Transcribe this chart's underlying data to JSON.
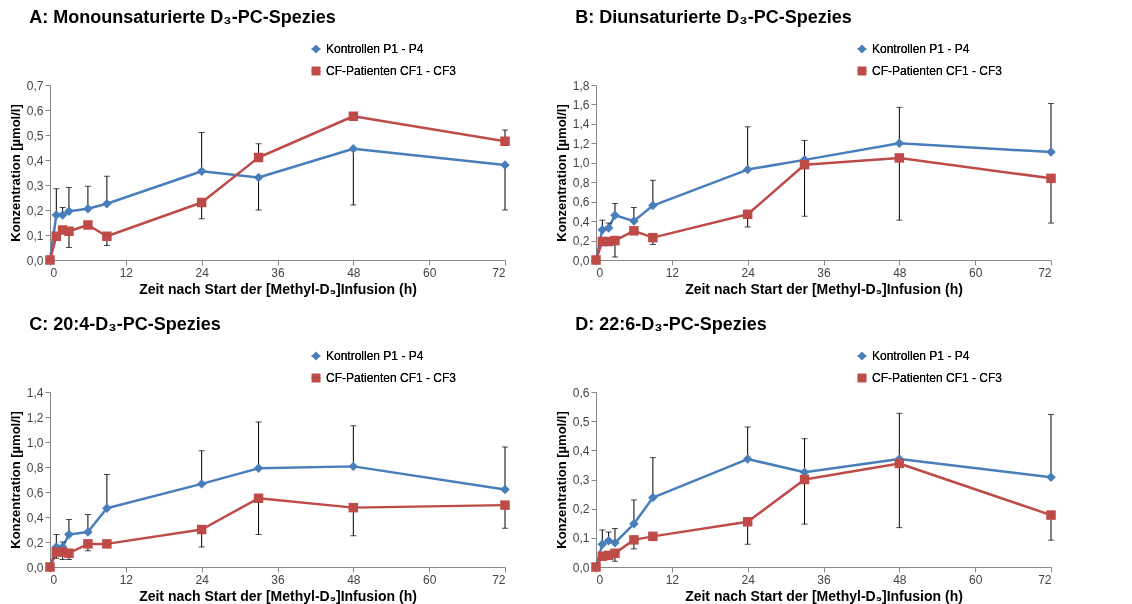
{
  "chart_data": [
    {
      "type": "line",
      "title": "A: Monounsaturierte D₃-PC-Spezies",
      "xlabel": "Zeit nach Start der [Methyl-D₉]Infusion (h)",
      "ylabel": "Konzentration [µmol/l]",
      "x": [
        0,
        1,
        2,
        3,
        6,
        9,
        24,
        33,
        48,
        72
      ],
      "xlim": [
        0,
        72
      ],
      "xticks": [
        0,
        12,
        24,
        36,
        48,
        60,
        72
      ],
      "ylim": [
        0,
        0.7
      ],
      "yticks": [
        {
          "value": 0,
          "label": "0,0"
        },
        {
          "value": 0.1,
          "label": "0,1"
        },
        {
          "value": 0.2,
          "label": "0,2"
        },
        {
          "value": 0.3,
          "label": "0,3"
        },
        {
          "value": 0.4,
          "label": "0,4"
        },
        {
          "value": 0.5,
          "label": "0,5"
        },
        {
          "value": 0.6,
          "label": "0,6"
        },
        {
          "value": 0.7,
          "label": "0,7"
        }
      ],
      "legend": "top right",
      "grid": false,
      "series": [
        {
          "name": "Kontrollen P1 - P4",
          "color": "#4a7ebb",
          "marker": "diamond",
          "values": [
            0,
            0.18,
            0.18,
            0.195,
            0.205,
            0.225,
            0.355,
            0.33,
            0.445,
            0.38
          ],
          "errors": [
            null,
            [
              0.18,
              0.285
            ],
            [
              0.18,
              0.21
            ],
            [
              0.195,
              0.29
            ],
            [
              0.205,
              0.295
            ],
            [
              0.225,
              0.335
            ],
            [
              0.355,
              0.51
            ],
            [
              0.2,
              0.33
            ],
            [
              0.22,
              0.445
            ],
            [
              0.2,
              0.38
            ]
          ]
        },
        {
          "name": "CF-Patienten CF1 - CF3",
          "color": "#be4b48",
          "marker": "square",
          "values": [
            0,
            0.095,
            0.12,
            0.115,
            0.14,
            0.095,
            0.23,
            0.41,
            0.575,
            0.475
          ],
          "errors": [
            null,
            null,
            null,
            [
              0.05,
              0.115
            ],
            null,
            [
              0.058,
              0.095
            ],
            [
              0.165,
              0.23
            ],
            [
              0.41,
              0.465
            ],
            null,
            [
              0.475,
              0.52
            ]
          ]
        }
      ]
    },
    {
      "type": "line",
      "title": "B: Diunsaturierte D₃-PC-Spezies",
      "xlabel": "Zeit nach Start der [Methyl-D₉]Infusion (h)",
      "ylabel": "Konzentration [µmol/l]",
      "x": [
        0,
        1,
        2,
        3,
        6,
        9,
        24,
        33,
        48,
        72
      ],
      "xlim": [
        0,
        72
      ],
      "xticks": [
        0,
        12,
        24,
        36,
        48,
        60,
        72
      ],
      "ylim": [
        0,
        1.8
      ],
      "yticks": [
        {
          "value": 0,
          "label": "0,0"
        },
        {
          "value": 0.2,
          "label": "0,2"
        },
        {
          "value": 0.4,
          "label": "0,4"
        },
        {
          "value": 0.6,
          "label": "0,6"
        },
        {
          "value": 0.8,
          "label": "0,8"
        },
        {
          "value": 1.0,
          "label": "1,0"
        },
        {
          "value": 1.2,
          "label": "1,2"
        },
        {
          "value": 1.4,
          "label": "1,4"
        },
        {
          "value": 1.6,
          "label": "1,6"
        },
        {
          "value": 1.8,
          "label": "1,8"
        }
      ],
      "legend": "top right",
      "grid": false,
      "series": [
        {
          "name": "Kontrollen P1 - P4",
          "color": "#4a7ebb",
          "marker": "diamond",
          "values": [
            0,
            0.31,
            0.33,
            0.46,
            0.4,
            0.56,
            0.93,
            1.03,
            1.2,
            1.11
          ],
          "errors": [
            null,
            [
              0.31,
              0.41
            ],
            [
              0.33,
              0.38
            ],
            [
              0.46,
              0.58
            ],
            [
              0.4,
              0.54
            ],
            [
              0.56,
              0.82
            ],
            [
              0.93,
              1.37
            ],
            [
              1.03,
              1.23
            ],
            [
              1.2,
              1.57
            ],
            [
              1.11,
              1.61
            ]
          ]
        },
        {
          "name": "CF-Patienten CF1 - CF3",
          "color": "#be4b48",
          "marker": "square",
          "values": [
            0,
            0.19,
            0.19,
            0.2,
            0.3,
            0.23,
            0.47,
            0.98,
            1.05,
            0.84
          ],
          "errors": [
            null,
            null,
            null,
            [
              0.03,
              0.2
            ],
            null,
            [
              0.16,
              0.23
            ],
            [
              0.34,
              0.47
            ],
            [
              0.45,
              0.98
            ],
            [
              0.41,
              1.05
            ],
            [
              0.38,
              0.84
            ]
          ]
        }
      ]
    },
    {
      "type": "line",
      "title": "C: 20:4-D₃-PC-Spezies",
      "xlabel": "Zeit nach Start der [Methyl-D₉]Infusion (h)",
      "ylabel": "Konzentration [µmol/l]",
      "x": [
        0,
        1,
        2,
        3,
        6,
        9,
        24,
        33,
        48,
        72
      ],
      "xlim": [
        0,
        72
      ],
      "xticks": [
        0,
        12,
        24,
        36,
        48,
        60,
        72
      ],
      "ylim": [
        0,
        1.4
      ],
      "yticks": [
        {
          "value": 0,
          "label": "0,0"
        },
        {
          "value": 0.2,
          "label": "0,2"
        },
        {
          "value": 0.4,
          "label": "0,4"
        },
        {
          "value": 0.6,
          "label": "0,6"
        },
        {
          "value": 0.8,
          "label": "0,8"
        },
        {
          "value": 1.0,
          "label": "1,0"
        },
        {
          "value": 1.2,
          "label": "1,2"
        },
        {
          "value": 1.4,
          "label": "1,4"
        }
      ],
      "legend": "top right",
      "grid": false,
      "series": [
        {
          "name": "Kontrollen P1 - P4",
          "color": "#4a7ebb",
          "marker": "diamond",
          "values": [
            0,
            0.16,
            0.16,
            0.26,
            0.28,
            0.47,
            0.665,
            0.79,
            0.805,
            0.62
          ],
          "errors": [
            null,
            [
              0.16,
              0.26
            ],
            [
              0.16,
              0.2
            ],
            [
              0.26,
              0.38
            ],
            [
              0.28,
              0.42
            ],
            [
              0.47,
              0.74
            ],
            [
              0.665,
              0.93
            ],
            [
              0.79,
              1.16
            ],
            [
              0.805,
              1.13
            ],
            [
              0.62,
              0.96
            ]
          ]
        },
        {
          "name": "CF-Patienten CF1 - CF3",
          "color": "#be4b48",
          "marker": "square",
          "values": [
            0,
            0.12,
            0.12,
            0.11,
            0.185,
            0.185,
            0.3,
            0.55,
            0.475,
            0.495
          ],
          "errors": [
            null,
            [
              0.07,
              0.12
            ],
            [
              0.06,
              0.12
            ],
            [
              0.06,
              0.11
            ],
            [
              0.13,
              0.185
            ],
            null,
            [
              0.16,
              0.3
            ],
            [
              0.26,
              0.55
            ],
            [
              0.25,
              0.475
            ],
            [
              0.31,
              0.495
            ]
          ]
        }
      ]
    },
    {
      "type": "line",
      "title": "D: 22:6-D₃-PC-Spezies",
      "xlabel": "Zeit nach Start der [Methyl-D₉]Infusion (h)",
      "ylabel": "Konzentration [µmol/l]",
      "x": [
        0,
        1,
        2,
        3,
        6,
        9,
        24,
        33,
        48,
        72
      ],
      "xlim": [
        0,
        72
      ],
      "xticks": [
        0,
        12,
        24,
        36,
        48,
        60,
        72
      ],
      "ylim": [
        0,
        0.6
      ],
      "yticks": [
        {
          "value": 0,
          "label": "0,0"
        },
        {
          "value": 0.1,
          "label": "0,1"
        },
        {
          "value": 0.2,
          "label": "0,2"
        },
        {
          "value": 0.3,
          "label": "0,3"
        },
        {
          "value": 0.4,
          "label": "0,4"
        },
        {
          "value": 0.5,
          "label": "0,5"
        },
        {
          "value": 0.6,
          "label": "0,6"
        }
      ],
      "legend": "top right",
      "grid": false,
      "series": [
        {
          "name": "Kontrollen P1 - P4",
          "color": "#4a7ebb",
          "marker": "diamond",
          "values": [
            0,
            0.078,
            0.09,
            0.083,
            0.148,
            0.238,
            0.37,
            0.325,
            0.37,
            0.308
          ],
          "errors": [
            null,
            [
              0.078,
              0.127
            ],
            [
              0.09,
              0.12
            ],
            [
              0.083,
              0.132
            ],
            [
              0.148,
              0.23
            ],
            [
              0.238,
              0.375
            ],
            [
              0.37,
              0.48
            ],
            [
              0.325,
              0.44
            ],
            [
              0.37,
              0.527
            ],
            [
              0.308,
              0.523
            ]
          ]
        },
        {
          "name": "CF-Patienten CF1 - CF3",
          "color": "#be4b48",
          "marker": "square",
          "values": [
            0,
            0.037,
            0.04,
            0.047,
            0.093,
            0.105,
            0.155,
            0.3,
            0.355,
            0.178
          ],
          "errors": [
            null,
            null,
            null,
            [
              0.02,
              0.047
            ],
            [
              0.062,
              0.093
            ],
            null,
            [
              0.078,
              0.155
            ],
            [
              0.147,
              0.3
            ],
            [
              0.135,
              0.355
            ],
            [
              0.092,
              0.178
            ]
          ]
        }
      ]
    }
  ]
}
